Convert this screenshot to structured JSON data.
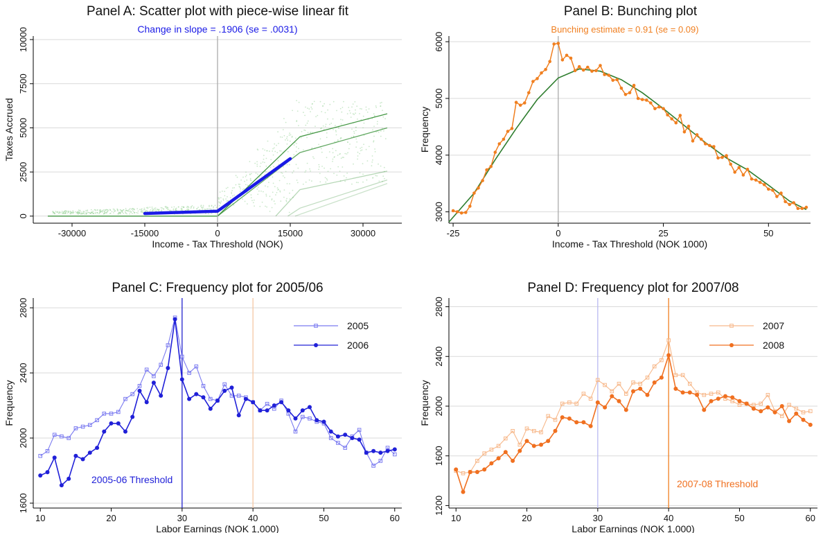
{
  "chart_data": [
    {
      "id": "A",
      "type": "scatter",
      "title": "Panel A: Scatter plot with piece-wise linear fit",
      "subtitle": "Change in slope = .1906 (se = .0031)",
      "xlabel": "Income - Tax Threshold (NOK)",
      "ylabel": "Taxes Accrued",
      "xlim": [
        -38000,
        38000
      ],
      "ylim": [
        -400,
        10200
      ],
      "xticks": [
        -30000,
        -15000,
        0,
        15000,
        30000
      ],
      "xtick_labels": [
        "-30000",
        "-15000",
        "0",
        "15000",
        "30000"
      ],
      "yticks": [
        0,
        2500,
        5000,
        7500,
        10000
      ],
      "ytick_labels": [
        "0",
        "2500",
        "5000",
        "7500",
        "10000"
      ],
      "grid": true,
      "vline": 0,
      "colors": {
        "fit": "#1a1ae6",
        "schedule": "#2e8b2e",
        "scatter": "#9fd69f",
        "vline": "#aaaaaa"
      },
      "fit_line": {
        "x": [
          -15000,
          0,
          15000
        ],
        "y": [
          150,
          280,
          3250
        ]
      },
      "schedule_lines": [
        {
          "x": [
            -35000,
            0,
            17000,
            35000
          ],
          "y": [
            0,
            0,
            4500,
            5800
          ],
          "opacity": 0.9
        },
        {
          "x": [
            0,
            17000,
            35000
          ],
          "y": [
            0,
            3600,
            5000
          ],
          "opacity": 0.75
        },
        {
          "x": [
            12000,
            17000,
            35000
          ],
          "y": [
            0,
            1500,
            2550
          ],
          "opacity": 0.35
        },
        {
          "x": [
            14500,
            17000,
            35000
          ],
          "y": [
            0,
            450,
            2050
          ],
          "opacity": 0.3
        },
        {
          "x": [
            16000,
            35000
          ],
          "y": [
            0,
            1850
          ],
          "opacity": 0.25
        }
      ]
    },
    {
      "id": "B",
      "type": "line",
      "title": "Panel B: Bunching plot",
      "subtitle": "Bunching estimate = 0.91 (se = 0.09)",
      "xlabel": "Income - Tax Threshold (NOK 1000)",
      "ylabel": "Frequency",
      "xlim": [
        -26,
        60
      ],
      "ylim": [
        2800,
        6100
      ],
      "xticks": [
        -25,
        0,
        25,
        50
      ],
      "xtick_labels": [
        "-25",
        "0",
        "25",
        "50"
      ],
      "yticks": [
        3000,
        4000,
        5000,
        6000
      ],
      "ytick_labels": [
        "3000",
        "4000",
        "5000",
        "6000"
      ],
      "grid": true,
      "vline": 0,
      "colors": {
        "observed": "#f07f20",
        "fit": "#2e7d2e",
        "vline": "#aaaaaa"
      },
      "observed": {
        "x": [
          -25,
          -24,
          -23,
          -22,
          -21,
          -20,
          -19,
          -18,
          -17,
          -16,
          -15,
          -14,
          -13,
          -12,
          -11,
          -10,
          -9,
          -8,
          -7,
          -6,
          -5,
          -4,
          -3,
          -2,
          -1,
          0,
          1,
          2,
          3,
          4,
          5,
          6,
          7,
          8,
          9,
          10,
          11,
          12,
          13,
          14,
          15,
          16,
          17,
          18,
          19,
          20,
          21,
          22,
          23,
          24,
          25,
          26,
          27,
          28,
          29,
          30,
          31,
          32,
          33,
          34,
          35,
          36,
          37,
          38,
          39,
          40,
          41,
          42,
          43,
          44,
          45,
          46,
          47,
          48,
          49,
          50,
          51,
          52,
          53,
          54,
          55,
          56,
          57,
          58,
          59
        ],
        "y": [
          3020,
          3000,
          2980,
          2990,
          3100,
          3330,
          3420,
          3550,
          3740,
          3800,
          4050,
          4200,
          4280,
          4420,
          4470,
          4930,
          4880,
          4920,
          5100,
          5300,
          5350,
          5450,
          5510,
          5650,
          5960,
          5970,
          5680,
          5760,
          5710,
          5490,
          5560,
          5500,
          5550,
          5480,
          5490,
          5580,
          5420,
          5410,
          5320,
          5330,
          5180,
          5070,
          5100,
          5230,
          5000,
          4980,
          4970,
          4920,
          4820,
          4850,
          4820,
          4710,
          4640,
          4570,
          4700,
          4410,
          4510,
          4250,
          4360,
          4280,
          4200,
          4170,
          4150,
          3950,
          3960,
          3990,
          3840,
          3700,
          3780,
          3650,
          3750,
          3580,
          3560,
          3520,
          3480,
          3400,
          3380,
          3270,
          3330,
          3180,
          3130,
          3160,
          3060,
          3060,
          3080
        ]
      },
      "fit": {
        "x": [
          -26,
          -20,
          -15,
          -10,
          -5,
          0,
          5,
          10,
          15,
          20,
          25,
          30,
          35,
          40,
          45,
          50,
          55,
          59
        ],
        "y": [
          2820,
          3330,
          3920,
          4470,
          4980,
          5360,
          5520,
          5480,
          5330,
          5100,
          4820,
          4520,
          4220,
          3950,
          3740,
          3470,
          3190,
          3040
        ]
      }
    },
    {
      "id": "C",
      "type": "line",
      "title": "Panel C: Frequency plot for 2005/06",
      "xlabel": "Labor Earnings (NOK 1,000)",
      "ylabel": "Frequency",
      "xlim": [
        9,
        61
      ],
      "ylim": [
        1570,
        2860
      ],
      "xticks": [
        10,
        20,
        30,
        40,
        50,
        60
      ],
      "xtick_labels": [
        "10",
        "20",
        "30",
        "40",
        "50",
        "60"
      ],
      "yticks": [
        1600,
        2000,
        2400,
        2800
      ],
      "ytick_labels": [
        "1600",
        "2000",
        "2400",
        "2800"
      ],
      "grid": true,
      "legend_position": "top-right",
      "annotation": "2005-06 Threshold",
      "vlines": [
        {
          "x": 30,
          "color": "#2222cc"
        },
        {
          "x": 40,
          "color": "#f5c7a3"
        }
      ],
      "x": [
        10,
        11,
        12,
        13,
        14,
        15,
        16,
        17,
        18,
        19,
        20,
        21,
        22,
        23,
        24,
        25,
        26,
        27,
        28,
        29,
        30,
        31,
        32,
        33,
        34,
        35,
        36,
        37,
        38,
        39,
        40,
        41,
        42,
        43,
        44,
        45,
        46,
        47,
        48,
        49,
        50,
        51,
        52,
        53,
        54,
        55,
        56,
        57,
        58,
        59,
        60
      ],
      "series": [
        {
          "name": "2005",
          "color": "#7b7bf0",
          "marker": "square",
          "values": [
            1890,
            1920,
            2020,
            2010,
            2000,
            2060,
            2070,
            2080,
            2110,
            2150,
            2150,
            2160,
            2240,
            2270,
            2320,
            2420,
            2380,
            2450,
            2570,
            2740,
            2500,
            2400,
            2440,
            2320,
            2240,
            2230,
            2330,
            2260,
            2260,
            2250,
            2220,
            2170,
            2210,
            2180,
            2230,
            2150,
            2040,
            2130,
            2120,
            2100,
            2090,
            2000,
            1970,
            1940,
            2010,
            2050,
            1910,
            1830,
            1860,
            1940,
            1900
          ]
        },
        {
          "name": "2006",
          "color": "#2020d8",
          "marker": "circle",
          "values": [
            1770,
            1790,
            1880,
            1710,
            1750,
            1890,
            1870,
            1910,
            1940,
            2040,
            2090,
            2090,
            2040,
            2130,
            2290,
            2220,
            2340,
            2260,
            2430,
            2730,
            2360,
            2240,
            2270,
            2250,
            2180,
            2230,
            2290,
            2310,
            2140,
            2240,
            2220,
            2170,
            2170,
            2200,
            2220,
            2170,
            2120,
            2170,
            2190,
            2110,
            2100,
            2040,
            2010,
            2020,
            2000,
            1990,
            1910,
            1920,
            1910,
            1920,
            1930
          ]
        }
      ]
    },
    {
      "id": "D",
      "type": "line",
      "title": "Panel D: Frequency plot for 2007/08",
      "xlabel": "Labor Earnings (NOK 1,000)",
      "ylabel": "Frequency",
      "xlim": [
        9,
        61
      ],
      "ylim": [
        1180,
        2870
      ],
      "xticks": [
        10,
        20,
        30,
        40,
        50,
        60
      ],
      "xtick_labels": [
        "10",
        "20",
        "30",
        "40",
        "50",
        "60"
      ],
      "yticks": [
        1200,
        1600,
        2000,
        2400,
        2800
      ],
      "ytick_labels": [
        "1200",
        "1600",
        "2000",
        "2400",
        "2800"
      ],
      "grid": true,
      "legend_position": "top-right",
      "annotation": "2007-08 Threshold",
      "vlines": [
        {
          "x": 30,
          "color": "#b9b9f2"
        },
        {
          "x": 40,
          "color": "#f07f20"
        }
      ],
      "x": [
        10,
        11,
        12,
        13,
        14,
        15,
        16,
        17,
        18,
        19,
        20,
        21,
        22,
        23,
        24,
        25,
        26,
        27,
        28,
        29,
        30,
        31,
        32,
        33,
        34,
        35,
        36,
        37,
        38,
        39,
        40,
        41,
        42,
        43,
        44,
        45,
        46,
        47,
        48,
        49,
        50,
        51,
        52,
        53,
        54,
        55,
        56,
        57,
        58,
        59,
        60
      ],
      "series": [
        {
          "name": "2007",
          "color": "#f7b88a",
          "marker": "square",
          "values": [
            1480,
            1460,
            1470,
            1560,
            1620,
            1650,
            1680,
            1740,
            1800,
            1690,
            1820,
            1800,
            1790,
            1920,
            1890,
            2020,
            2030,
            2020,
            2100,
            2060,
            2210,
            2170,
            2120,
            2180,
            2100,
            2190,
            2180,
            2230,
            2320,
            2370,
            2530,
            2250,
            2250,
            2180,
            2110,
            2090,
            2100,
            2110,
            2060,
            2040,
            2010,
            2020,
            2010,
            2020,
            2090,
            1960,
            1920,
            2010,
            1980,
            1950,
            1960
          ]
        },
        {
          "name": "2008",
          "color": "#f07020",
          "marker": "circle",
          "values": [
            1490,
            1310,
            1470,
            1470,
            1490,
            1540,
            1580,
            1630,
            1560,
            1640,
            1720,
            1680,
            1690,
            1720,
            1800,
            1910,
            1900,
            1870,
            1870,
            1840,
            2030,
            1990,
            2080,
            2040,
            1970,
            2120,
            2140,
            2090,
            2190,
            2230,
            2410,
            2140,
            2110,
            2110,
            2090,
            1970,
            2040,
            2060,
            2080,
            2070,
            2040,
            2020,
            1980,
            1960,
            1990,
            1950,
            2000,
            1880,
            1940,
            1890,
            1850
          ]
        }
      ]
    }
  ]
}
